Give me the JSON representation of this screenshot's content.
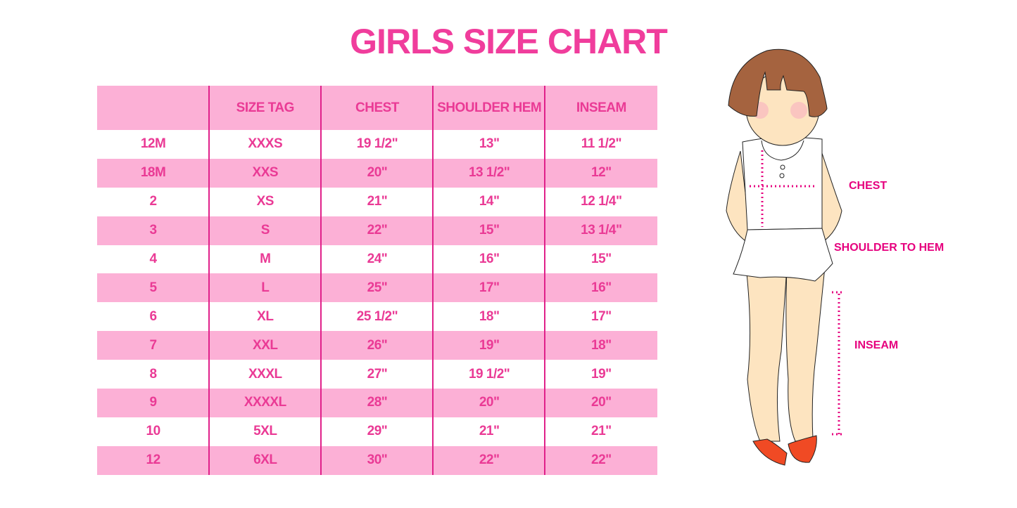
{
  "title": "GIRLS SIZE CHART",
  "table": {
    "headers": [
      "",
      "SIZE TAG",
      "CHEST",
      "SHOULDER HEM",
      "INSEAM"
    ],
    "rows": [
      [
        "12M",
        "XXXS",
        "19 1/2\"",
        "13\"",
        "11 1/2\""
      ],
      [
        "18M",
        "XXS",
        "20\"",
        "13 1/2\"",
        "12\""
      ],
      [
        "2",
        "XS",
        "21\"",
        "14\"",
        "12 1/4\""
      ],
      [
        "3",
        "S",
        "22\"",
        "15\"",
        "13 1/4\""
      ],
      [
        "4",
        "M",
        "24\"",
        "16\"",
        "15\""
      ],
      [
        "5",
        "L",
        "25\"",
        "17\"",
        "16\""
      ],
      [
        "6",
        "XL",
        "25 1/2\"",
        "18\"",
        "17\""
      ],
      [
        "7",
        "XXL",
        "26\"",
        "19\"",
        "18\""
      ],
      [
        "8",
        "XXXL",
        "27\"",
        "19 1/2\"",
        "19\""
      ],
      [
        "9",
        "XXXXL",
        "28\"",
        "20\"",
        "20\""
      ],
      [
        "10",
        "5XL",
        "29\"",
        "21\"",
        "21\""
      ],
      [
        "12",
        "6XL",
        "30\"",
        "22\"",
        "22\""
      ]
    ]
  },
  "figure": {
    "labels": {
      "chest": "CHEST",
      "shoulder_to_hem": "SHOULDER TO HEM",
      "inseam": "INSEAM"
    }
  },
  "colors": {
    "title": "#f03d9c",
    "row_pink": "#fcb0d6",
    "text": "#ea3a95",
    "divider": "#e0218a",
    "measure": "#e6007e"
  }
}
